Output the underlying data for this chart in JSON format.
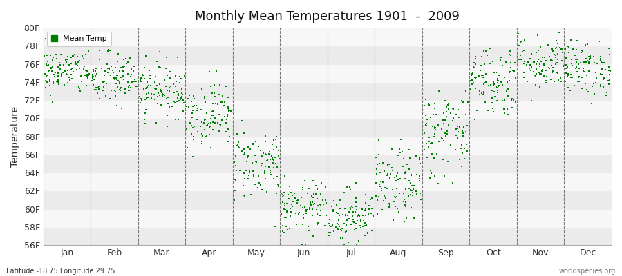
{
  "title": "Monthly Mean Temperatures 1901  -  2009",
  "ylabel": "Temperature",
  "xlabel_bottom_left": "Latitude -18.75 Longitude 29.75",
  "xlabel_bottom_right": "worldspecies.org",
  "legend_label": "Mean Temp",
  "ylim": [
    56,
    80
  ],
  "yticks": [
    56,
    58,
    60,
    62,
    64,
    66,
    68,
    70,
    72,
    74,
    76,
    78,
    80
  ],
  "ytick_labels": [
    "56F",
    "58F",
    "60F",
    "62F",
    "64F",
    "66F",
    "68F",
    "70F",
    "72F",
    "74F",
    "76F",
    "78F",
    "80F"
  ],
  "months": [
    "Jan",
    "Feb",
    "Mar",
    "Apr",
    "May",
    "Jun",
    "Jul",
    "Aug",
    "Sep",
    "Oct",
    "Nov",
    "Dec"
  ],
  "marker_color": "#008000",
  "background_color": "#ffffff",
  "band_color_light": "#ebebeb",
  "band_color_dark": "#f7f7f7",
  "n_years": 109,
  "mean_temps_F": [
    75.2,
    74.3,
    73.2,
    70.5,
    65.0,
    60.0,
    59.2,
    62.5,
    68.5,
    74.2,
    76.2,
    75.5
  ],
  "std_temps_F": [
    1.3,
    1.5,
    1.5,
    1.8,
    2.0,
    1.5,
    1.5,
    2.0,
    2.5,
    2.0,
    1.5,
    1.5
  ],
  "seed": 42
}
